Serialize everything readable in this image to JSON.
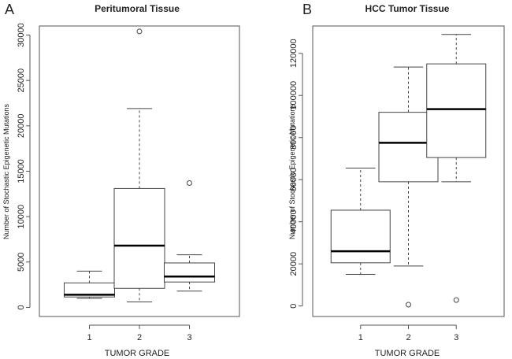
{
  "chart_data": [
    {
      "type": "box",
      "panel_letter": "A",
      "title": "Peritumoral Tissue",
      "xlabel": "TUMOR GRADE",
      "ylabel": "Number of Stochastic Epigenetic Mutations",
      "categories": [
        "1",
        "2",
        "3"
      ],
      "ylim": [
        -1000,
        31000
      ],
      "yticks": [
        0,
        5000,
        10000,
        15000,
        20000,
        25000,
        30000
      ],
      "boxes": [
        {
          "category": "1",
          "whisker_low": 1000,
          "q1": 1150,
          "median": 1400,
          "q3": 2700,
          "whisker_high": 4000,
          "outliers": []
        },
        {
          "category": "2",
          "whisker_low": 600,
          "q1": 2100,
          "median": 6800,
          "q3": 13100,
          "whisker_high": 21900,
          "outliers": [
            30400
          ]
        },
        {
          "category": "3",
          "whisker_low": 1800,
          "q1": 2800,
          "median": 3400,
          "q3": 4900,
          "whisker_high": 5800,
          "outliers": [
            13700
          ]
        }
      ]
    },
    {
      "type": "box",
      "panel_letter": "B",
      "title": "HCC Tumor Tissue",
      "xlabel": "TUMOR GRADE",
      "ylabel": "Number of Stochastic Epigenetic Mutations",
      "categories": [
        "1",
        "2",
        "3"
      ],
      "ylim": [
        -5000,
        133000
      ],
      "yticks": [
        0,
        20000,
        40000,
        60000,
        80000,
        100000,
        120000
      ],
      "boxes": [
        {
          "category": "1",
          "whisker_low": 15000,
          "q1": 20500,
          "median": 26000,
          "q3": 45500,
          "whisker_high": 65500,
          "outliers": []
        },
        {
          "category": "2",
          "whisker_low": 19000,
          "q1": 59000,
          "median": 77500,
          "q3": 92000,
          "whisker_high": 113500,
          "outliers": [
            600
          ]
        },
        {
          "category": "3",
          "whisker_low": 59000,
          "q1": 70500,
          "median": 93500,
          "q3": 115000,
          "whisker_high": 129000,
          "outliers": [
            2800
          ]
        }
      ]
    }
  ]
}
